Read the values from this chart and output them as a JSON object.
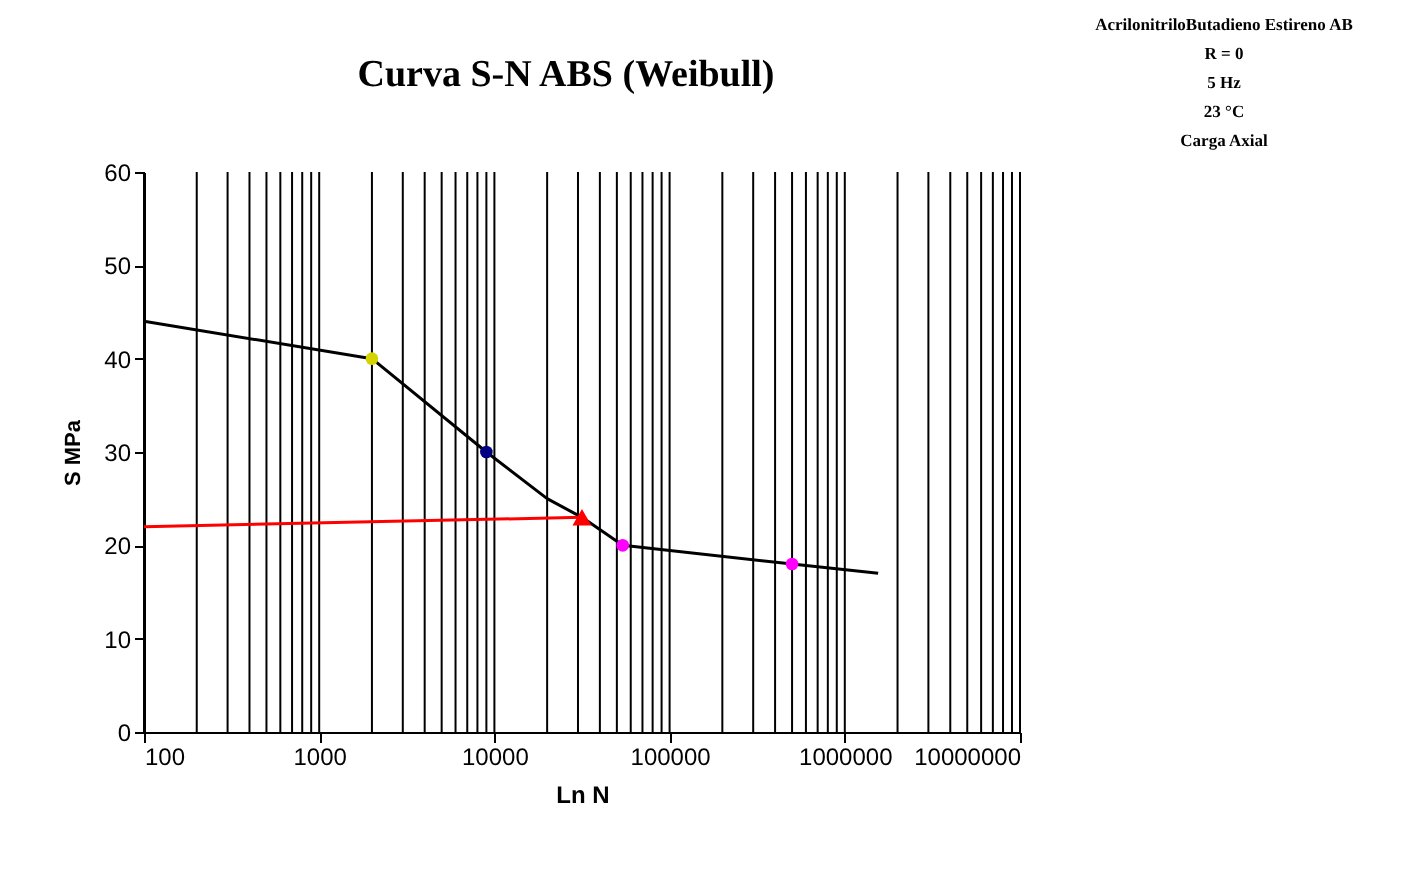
{
  "chart_data": {
    "type": "line",
    "title": "Curva S-N   ABS (Weibull)",
    "xlabel": "Ln N",
    "ylabel": "S MPa",
    "log": "x",
    "grid": "x",
    "xlim": [
      100,
      10000000
    ],
    "xticks": [
      100,
      1000,
      10000,
      100000,
      1000000,
      10000000
    ],
    "ylim": [
      0,
      60
    ],
    "yticks": [
      0,
      10,
      20,
      30,
      40,
      50,
      60
    ],
    "series": [
      {
        "type": "line",
        "color": "#000000",
        "marker": "none",
        "x": [
          100,
          2000,
          9000,
          20000,
          31600,
          54000,
          500000,
          1550000
        ],
        "values": [
          44,
          40,
          30,
          25,
          23,
          20,
          18,
          17
        ]
      },
      {
        "type": "line",
        "color": "#ff0000",
        "marker": "none",
        "x": [
          100,
          31600
        ],
        "values": [
          22,
          23
        ]
      },
      {
        "type": "scatter",
        "marker": "circle",
        "colors": [
          "#d4d400",
          "#000080",
          "#ff00ff",
          "#ff00ff"
        ],
        "x": [
          2000,
          9000,
          54000,
          500000
        ],
        "values": [
          40,
          30,
          20,
          18
        ]
      },
      {
        "type": "scatter",
        "marker": "triangle",
        "color": "#ff0000",
        "x": [
          31600
        ],
        "values": [
          23
        ]
      }
    ],
    "annotations": [
      "AcrilonitriloButadieno Estireno AB",
      "R = 0",
      "5 Hz",
      "23 °C",
      "Carga Axial"
    ]
  }
}
